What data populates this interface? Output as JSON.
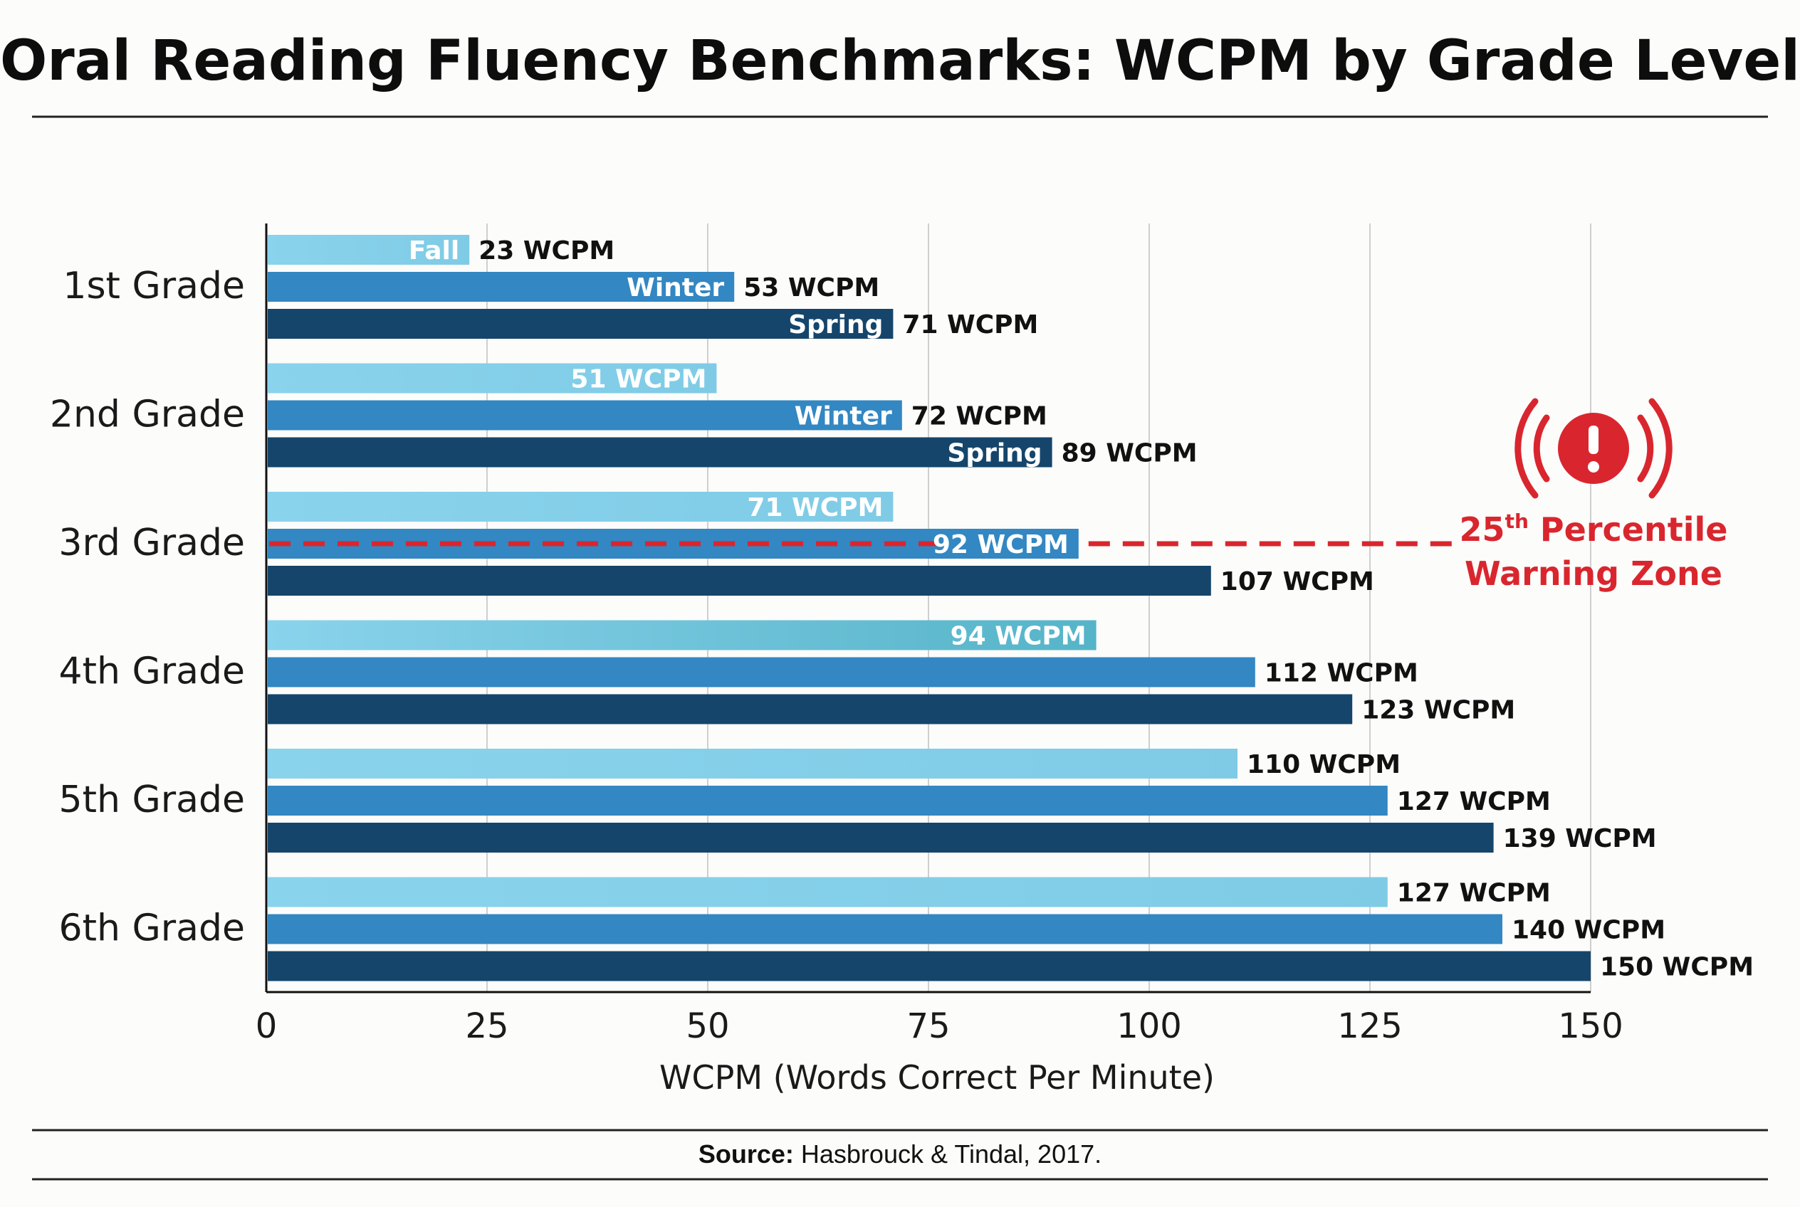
{
  "title": "Oral Reading Fluency Benchmarks: WCPM by Grade Level",
  "chart_data": {
    "type": "bar",
    "orientation": "horizontal",
    "title": "Oral Reading Fluency Benchmarks: WCPM by Grade Level",
    "xlabel": "WCPM (Words Correct Per Minute)",
    "ylabel": "",
    "xlim": [
      0,
      150
    ],
    "xticks": [
      "0",
      "25",
      "50",
      "75",
      "100",
      "125",
      "150"
    ],
    "grid": "vertical",
    "categories": [
      "1st Grade",
      "2nd Grade",
      "3rd Grade",
      "4th Grade",
      "5th Grade",
      "6th Grade"
    ],
    "series": [
      {
        "name": "Fall",
        "color": "#7fcbe6",
        "values": [
          23,
          51,
          71,
          94,
          110,
          127
        ],
        "inner_labels": [
          "Fall",
          "",
          "",
          "",
          "",
          ""
        ],
        "value_labels": [
          "23 WCPM",
          "51 WCPM",
          "71 WCPM",
          "94 WCPM",
          "110 WCPM",
          "127 WCPM"
        ],
        "value_label_inside": [
          false,
          true,
          true,
          true,
          false,
          false
        ]
      },
      {
        "name": "Winter",
        "color": "#3387c2",
        "values": [
          53,
          72,
          92,
          112,
          127,
          140
        ],
        "inner_labels": [
          "Winter",
          "Winter",
          "",
          "",
          "",
          ""
        ],
        "value_labels": [
          "53 WCPM",
          "72 WCPM",
          "92 WCPM",
          "112 WCPM",
          "127 WCPM",
          "140 WCPM"
        ],
        "value_label_inside": [
          false,
          false,
          true,
          false,
          false,
          false
        ]
      },
      {
        "name": "Spring",
        "color": "#15456b",
        "values": [
          71,
          89,
          107,
          123,
          139,
          150
        ],
        "inner_labels": [
          "Spring",
          "Spring",
          "",
          "",
          "",
          ""
        ],
        "value_labels": [
          "71 WCPM",
          "89 WCPM",
          "107 WCPM",
          "123 WCPM",
          "139 WCPM",
          "150 WCPM"
        ],
        "value_label_inside": [
          false,
          false,
          false,
          false,
          false,
          false
        ]
      }
    ],
    "fall_color_4th_grade": "#56b4c8",
    "annotation": {
      "text_line1": "25",
      "text_sup": "th",
      "text_line1_rest": " Percentile",
      "text_line2": "Warning Zone",
      "color": "#d9262e",
      "icon": "alert-signal-icon",
      "reference_line_grade": "3rd Grade",
      "reference_line_value": 92
    }
  },
  "source": {
    "label": "Source:",
    "text": " Hasbrouck & Tindal, 2017."
  }
}
